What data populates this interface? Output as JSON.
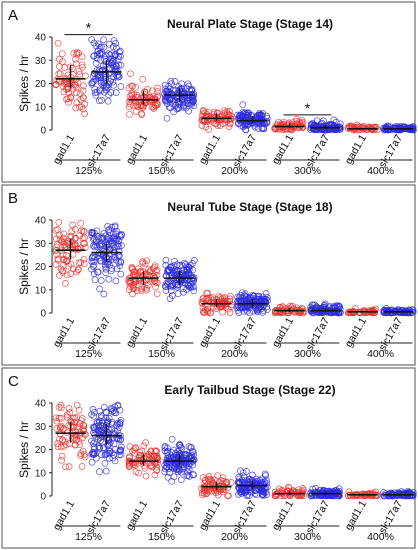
{
  "figure": {
    "group_labels": [
      "125%",
      "150%",
      "200%",
      "300%",
      "400%"
    ],
    "category_labels": [
      "gad1.1",
      "slc17a7"
    ],
    "colors": {
      "gad1.1": "#e8332f",
      "slc17a7": "#2b2bd9",
      "median_bar": "#111111"
    }
  },
  "chart_data": [
    {
      "type": "scatter",
      "panel": "A",
      "title": "Neural Plate Stage (Stage 14)",
      "ylabel": "Spikes / hr",
      "ylim": [
        0,
        40
      ],
      "yticks": [
        0,
        10,
        20,
        30,
        40
      ],
      "groups": [
        "125%",
        "150%",
        "200%",
        "300%",
        "400%"
      ],
      "series": [
        {
          "name": "gad1.1",
          "median": [
            22,
            13,
            5,
            1.5,
            0.5
          ],
          "q1": [
            18,
            11,
            4,
            1,
            0.3
          ],
          "q3": [
            28,
            17,
            7,
            3,
            1
          ],
          "spread": [
            18,
            7,
            4,
            3,
            1.5
          ],
          "n": [
            75,
            70,
            70,
            60,
            45
          ]
        },
        {
          "name": "slc17a7",
          "median": [
            25,
            15,
            4,
            1,
            0.5
          ],
          "q1": [
            20,
            12,
            3,
            0.5,
            0.2
          ],
          "q3": [
            30,
            18,
            6,
            2,
            0.8
          ],
          "spread": [
            17,
            7,
            5,
            3,
            1.3
          ],
          "n": [
            120,
            110,
            105,
            100,
            85
          ]
        }
      ],
      "significance": [
        {
          "label": "*",
          "between": [
            "gad1.1",
            "slc17a7"
          ],
          "group": "125%"
        },
        {
          "label": "*",
          "between": [
            "gad1.1",
            "slc17a7"
          ],
          "group": "300%"
        }
      ]
    },
    {
      "type": "scatter",
      "panel": "B",
      "title": "Neural Tube Stage (Stage 18)",
      "ylabel": "Spikes / hr",
      "ylim": [
        0,
        40
      ],
      "yticks": [
        0,
        10,
        20,
        30,
        40
      ],
      "groups": [
        "125%",
        "150%",
        "200%",
        "300%",
        "400%"
      ],
      "series": [
        {
          "name": "gad1.1",
          "median": [
            27,
            15,
            4,
            1,
            0.5
          ],
          "q1": [
            23,
            12,
            2.5,
            0.5,
            0.3
          ],
          "q3": [
            32,
            18,
            6,
            2,
            1
          ],
          "spread": [
            16,
            8,
            5,
            2.5,
            1.3
          ],
          "n": [
            80,
            80,
            70,
            55,
            40
          ]
        },
        {
          "name": "slc17a7",
          "median": [
            26,
            15,
            4,
            1,
            0.5
          ],
          "q1": [
            22,
            12,
            2.5,
            0.5,
            0.3
          ],
          "q3": [
            30,
            18,
            6,
            2,
            1
          ],
          "spread": [
            15,
            8,
            5,
            3,
            1.3
          ],
          "n": [
            130,
            120,
            125,
            100,
            70
          ]
        }
      ]
    },
    {
      "type": "scatter",
      "panel": "C",
      "title": "Early Tailbud Stage (Stage 22)",
      "ylabel": "Spikes / hr",
      "ylim": [
        0,
        40
      ],
      "yticks": [
        0,
        10,
        20,
        30,
        40
      ],
      "groups": [
        "125%",
        "150%",
        "200%",
        "300%",
        "400%"
      ],
      "series": [
        {
          "name": "gad1.1",
          "median": [
            27,
            15,
            4,
            1,
            0.5
          ],
          "q1": [
            23,
            13,
            2.5,
            0.5,
            0.3
          ],
          "q3": [
            32,
            18,
            6,
            2,
            1
          ],
          "spread": [
            16,
            7,
            5,
            2.5,
            1.3
          ],
          "n": [
            80,
            75,
            70,
            55,
            40
          ]
        },
        {
          "name": "slc17a7",
          "median": [
            26,
            15,
            4.5,
            1,
            0.5
          ],
          "q1": [
            22,
            13,
            3,
            0.5,
            0.3
          ],
          "q3": [
            31,
            18,
            6.5,
            2,
            1
          ],
          "spread": [
            16,
            8,
            6,
            3,
            1.5
          ],
          "n": [
            140,
            130,
            120,
            100,
            75
          ]
        }
      ]
    }
  ]
}
